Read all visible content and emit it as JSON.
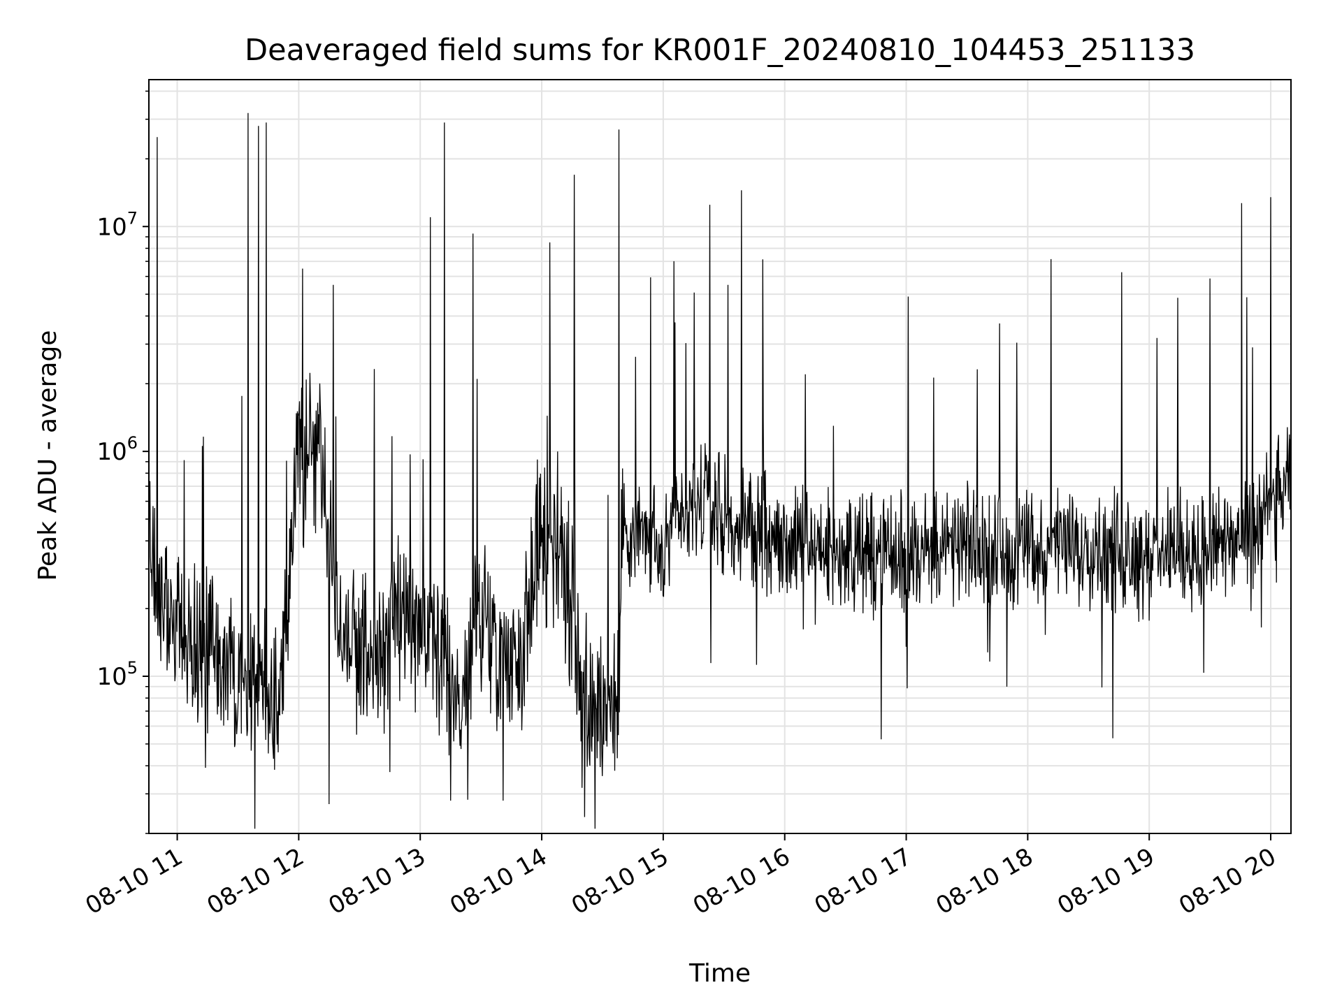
{
  "chart_data": {
    "type": "line",
    "title": "Deaveraged field sums for KR001F_20240810_104453_251133",
    "xlabel": "Time",
    "ylabel": "Peak ADU - average",
    "yscale": "log",
    "ylim": [
      20000,
      45000000
    ],
    "xlim": [
      "2024-08-10 10:46",
      "2024-08-10 20:10"
    ],
    "grid": true,
    "line_color": "#000000",
    "x_ticks": [
      {
        "t": "2024-08-10 11:00",
        "label": "08-10 11"
      },
      {
        "t": "2024-08-10 12:00",
        "label": "08-10 12"
      },
      {
        "t": "2024-08-10 13:00",
        "label": "08-10 13"
      },
      {
        "t": "2024-08-10 14:00",
        "label": "08-10 14"
      },
      {
        "t": "2024-08-10 15:00",
        "label": "08-10 15"
      },
      {
        "t": "2024-08-10 16:00",
        "label": "08-10 16"
      },
      {
        "t": "2024-08-10 17:00",
        "label": "08-10 17"
      },
      {
        "t": "2024-08-10 18:00",
        "label": "08-10 18"
      },
      {
        "t": "2024-08-10 19:00",
        "label": "08-10 19"
      },
      {
        "t": "2024-08-10 20:00",
        "label": "08-10 20"
      }
    ],
    "y_ticks": [
      {
        "value": 100000,
        "base": "10",
        "exp": "5"
      },
      {
        "value": 1000000,
        "base": "10",
        "exp": "6"
      },
      {
        "value": 10000000,
        "base": "10",
        "exp": "7"
      }
    ],
    "series": [
      {
        "x": [
          "2024-08-10 10:46",
          "2024-08-10 10:50",
          "2024-08-10 10:55",
          "2024-08-10 11:00",
          "2024-08-10 11:10",
          "2024-08-10 11:20",
          "2024-08-10 11:30",
          "2024-08-10 11:40",
          "2024-08-10 11:50",
          "2024-08-10 12:00",
          "2024-08-10 12:10",
          "2024-08-10 12:20",
          "2024-08-10 12:30",
          "2024-08-10 12:40",
          "2024-08-10 12:50",
          "2024-08-10 13:00",
          "2024-08-10 13:10",
          "2024-08-10 13:20",
          "2024-08-10 13:30",
          "2024-08-10 13:40",
          "2024-08-10 13:50",
          "2024-08-10 14:00",
          "2024-08-10 14:10",
          "2024-08-10 14:20",
          "2024-08-10 14:30",
          "2024-08-10 14:38",
          "2024-08-10 14:40",
          "2024-08-10 14:50",
          "2024-08-10 15:00",
          "2024-08-10 15:10",
          "2024-08-10 15:20",
          "2024-08-10 15:30",
          "2024-08-10 15:40",
          "2024-08-10 16:00",
          "2024-08-10 16:30",
          "2024-08-10 17:00",
          "2024-08-10 17:30",
          "2024-08-10 18:00",
          "2024-08-10 18:30",
          "2024-08-10 19:00",
          "2024-08-10 19:30",
          "2024-08-10 19:50",
          "2024-08-10 20:00",
          "2024-08-10 20:10"
        ],
        "y": [
          500000,
          250000,
          170000,
          150000,
          140000,
          120000,
          100000,
          90000,
          80000,
          1000000,
          1200000,
          150000,
          130000,
          120000,
          180000,
          150000,
          120000,
          80000,
          200000,
          130000,
          120000,
          500000,
          400000,
          80000,
          70000,
          80000,
          500000,
          400000,
          350000,
          500000,
          600000,
          500000,
          450000,
          400000,
          350000,
          350000,
          380000,
          370000,
          380000,
          350000,
          380000,
          380000,
          600000,
          700000
        ]
      }
    ],
    "spikes": [
      {
        "t": "2024-08-10 10:50",
        "value": 25000000
      },
      {
        "t": "2024-08-10 11:35",
        "value": 32000000
      },
      {
        "t": "2024-08-10 11:44",
        "value": 29000000
      },
      {
        "t": "2024-08-10 12:02",
        "value": 6500000
      },
      {
        "t": "2024-08-10 12:17",
        "value": 5500000
      },
      {
        "t": "2024-08-10 13:05",
        "value": 11000000
      },
      {
        "t": "2024-08-10 13:12",
        "value": 29000000
      },
      {
        "t": "2024-08-10 13:26",
        "value": 9300000
      },
      {
        "t": "2024-08-10 14:04",
        "value": 8500000
      },
      {
        "t": "2024-08-10 14:16",
        "value": 17000000
      },
      {
        "t": "2024-08-10 14:38",
        "value": 27000000
      },
      {
        "t": "2024-08-10 15:23",
        "value": 12500000
      },
      {
        "t": "2024-08-10 15:32",
        "value": 5500000
      },
      {
        "t": "2024-08-10 16:24",
        "value": 1300000
      },
      {
        "t": "2024-08-10 20:00",
        "value": 13500000
      }
    ],
    "dips": [
      {
        "t": "2024-08-10 11:40",
        "value": 28000000
      },
      {
        "t": "2024-08-10 12:15",
        "value": 27000
      },
      {
        "t": "2024-08-10 13:15",
        "value": 28000
      },
      {
        "t": "2024-08-10 13:41",
        "value": 28000
      },
      {
        "t": "2024-08-10 14:30",
        "value": 36000
      },
      {
        "t": "2024-08-10 18:42",
        "value": 53000
      }
    ]
  }
}
